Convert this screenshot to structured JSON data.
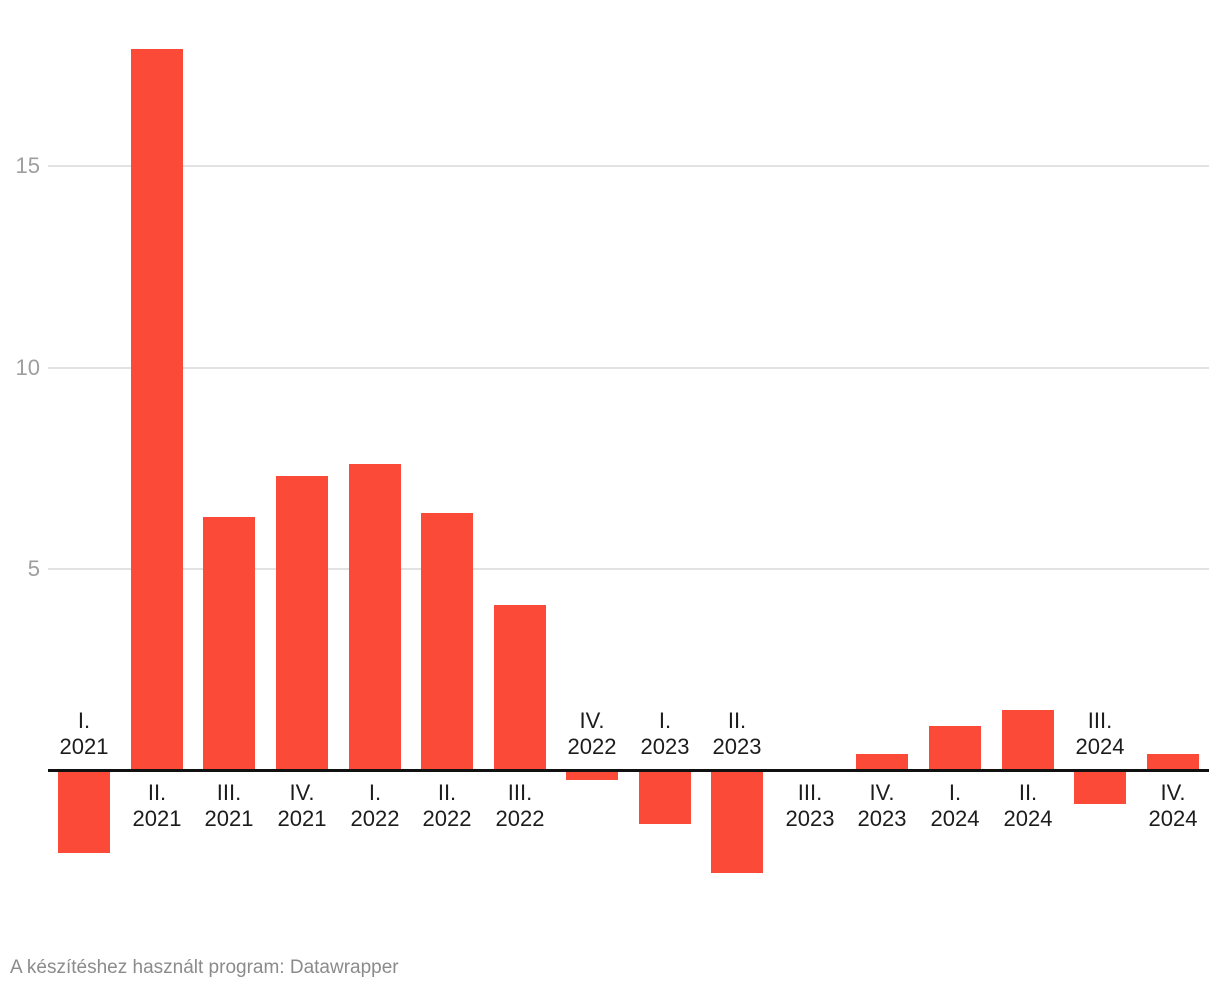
{
  "chart_data": {
    "type": "bar",
    "title": "",
    "xlabel": "",
    "ylabel": "",
    "categories": [
      "I. 2021",
      "II. 2021",
      "III. 2021",
      "IV. 2021",
      "I. 2022",
      "II. 2022",
      "III. 2022",
      "IV. 2022",
      "I. 2023",
      "II. 2023",
      "III. 2023",
      "IV. 2023",
      "I. 2024",
      "II. 2024",
      "III. 2024",
      "IV. 2024"
    ],
    "values": [
      -2.0,
      17.9,
      6.3,
      7.3,
      7.6,
      6.4,
      4.1,
      -0.2,
      -1.3,
      -2.5,
      0.0,
      0.4,
      1.1,
      1.5,
      -0.8,
      0.4
    ],
    "y_ticks": [
      5,
      10,
      15
    ],
    "ylim": [
      -3.6,
      18.6
    ],
    "grid": true,
    "legend": false,
    "label_placement": "positive bars labeled below axis, negative bars labeled above axis"
  },
  "colors": {
    "bar": "#fc4a38",
    "axis_line": "#111111",
    "gridline": "#e2e2e2",
    "x_tick_label": "#1c1c1c",
    "y_tick_label": "#9e9e9e",
    "footer_text": "#8b8b8b",
    "background": "#ffffff"
  },
  "footer": {
    "credit": "A készítéshez használt program: Datawrapper"
  }
}
